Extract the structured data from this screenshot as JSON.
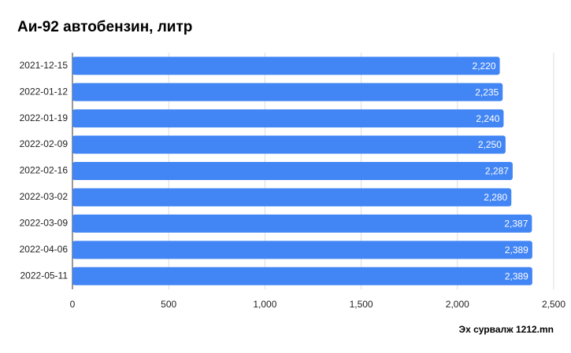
{
  "chart_data": {
    "type": "bar",
    "orientation": "horizontal",
    "title": "Аи-92 автобензин, литр",
    "categories": [
      "2021-12-15",
      "2022-01-12",
      "2022-01-19",
      "2022-02-09",
      "2022-02-16",
      "2022-03-02",
      "2022-03-09",
      "2022-04-06",
      "2022-05-11"
    ],
    "values": [
      2220,
      2235,
      2240,
      2250,
      2287,
      2280,
      2387,
      2389,
      2389
    ],
    "value_labels": [
      "2,220",
      "2,235",
      "2,240",
      "2,250",
      "2,287",
      "2,280",
      "2,387",
      "2,389",
      "2,389"
    ],
    "color": "#4285f4",
    "xlim": [
      0,
      2500
    ],
    "xticks": [
      0,
      500,
      {
        "value": 1000,
        "label": "1,000"
      },
      {
        "value": 1500,
        "label": "1,500"
      },
      {
        "value": 2000,
        "label": "2,000"
      },
      {
        "value": 2500,
        "label": "2,500"
      }
    ],
    "grid": true,
    "annotation": "Эх сурвалж 1212.mn"
  }
}
